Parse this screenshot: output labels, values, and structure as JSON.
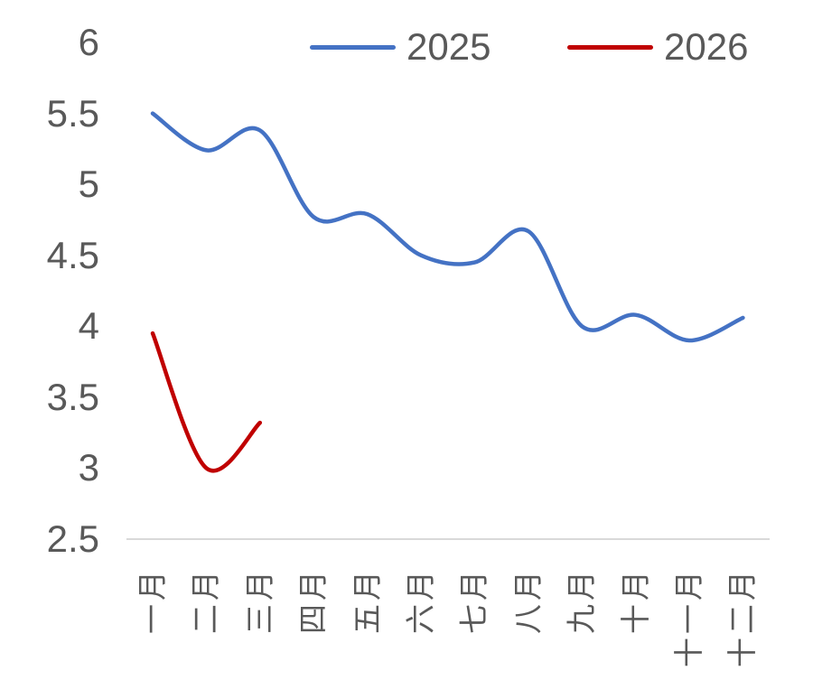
{
  "chart_data": {
    "type": "line",
    "smooth": true,
    "categories": [
      "一月",
      "二月",
      "三月",
      "四月",
      "五月",
      "六月",
      "七月",
      "八月",
      "九月",
      "十月",
      "十一月",
      "十二月"
    ],
    "series": [
      {
        "name": "2025",
        "color": "#4472C4",
        "values": [
          5.5,
          5.24,
          5.38,
          4.77,
          4.79,
          4.5,
          4.45,
          4.67,
          4.0,
          4.08,
          3.9,
          4.06
        ]
      },
      {
        "name": "2026",
        "color": "#C00000",
        "values": [
          3.95,
          3.0,
          3.32
        ]
      }
    ],
    "title": "",
    "xlabel": "",
    "ylabel": "",
    "ylim": [
      2.5,
      6
    ],
    "ytick_labels": [
      "2.5",
      "3",
      "3.5",
      "4",
      "4.5",
      "5",
      "5.5",
      "6"
    ],
    "grid": false,
    "legend_position": "top"
  },
  "colors": {
    "axis_line": "#D9D9D9",
    "tick_text": "#595959",
    "background": "#FFFFFF"
  }
}
